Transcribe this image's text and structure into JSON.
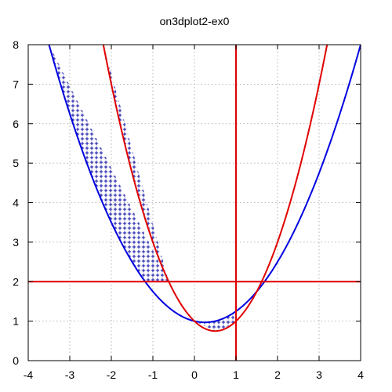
{
  "chart_data": {
    "type": "line",
    "title": "on3dplot2-ex0",
    "xlabel": "",
    "ylabel": "",
    "xlim": [
      -4,
      4
    ],
    "ylim": [
      0,
      8
    ],
    "x_ticks": [
      -4,
      -3,
      -2,
      -1,
      0,
      1,
      2,
      3,
      4
    ],
    "y_ticks": [
      0,
      1,
      2,
      3,
      4,
      5,
      6,
      7,
      8
    ],
    "grid": true,
    "grid_style": "dotted",
    "legend": "none",
    "series": [
      {
        "color": "#0000e0",
        "equation": "y = x^2/2 - x/4 + 1",
        "x": [
          -3.75,
          -3.5,
          -3.0,
          -2.5,
          -2.0,
          -1.5,
          -1.0,
          -0.5,
          0.0,
          0.25,
          0.5,
          1.0,
          1.5,
          2.0,
          2.5,
          3.0,
          3.5,
          3.75
        ],
        "y": [
          8.97,
          8.0,
          6.25,
          4.75,
          3.5,
          2.5,
          1.75,
          1.25,
          1.0,
          0.97,
          1.0,
          1.25,
          1.75,
          2.5,
          3.5,
          4.75,
          6.25,
          7.09
        ]
      },
      {
        "color": "#e00000",
        "equation": "y = x^2 - x + 1",
        "x": [
          -2.25,
          -2.0,
          -1.5,
          -1.0,
          -0.5,
          0.0,
          0.5,
          1.0,
          1.5,
          2.0,
          2.5,
          3.0,
          3.2
        ],
        "y": [
          8.31,
          7.0,
          4.75,
          3.0,
          1.75,
          1.0,
          0.75,
          1.0,
          1.75,
          3.0,
          4.75,
          7.0,
          8.04
        ]
      }
    ],
    "reference_lines": [
      {
        "orientation": "horizontal",
        "value": 2,
        "color": "#e00000"
      },
      {
        "orientation": "vertical",
        "value": 1,
        "color": "#e00000"
      }
    ],
    "hatched_regions": [
      {
        "description": "between blue and red curves, y > 2, x < 1",
        "color": "#0000a0",
        "pattern": "plus"
      },
      {
        "description": "between blue and red curves, y < 2, x < 1",
        "color": "#0000a0",
        "pattern": "plus"
      }
    ]
  }
}
